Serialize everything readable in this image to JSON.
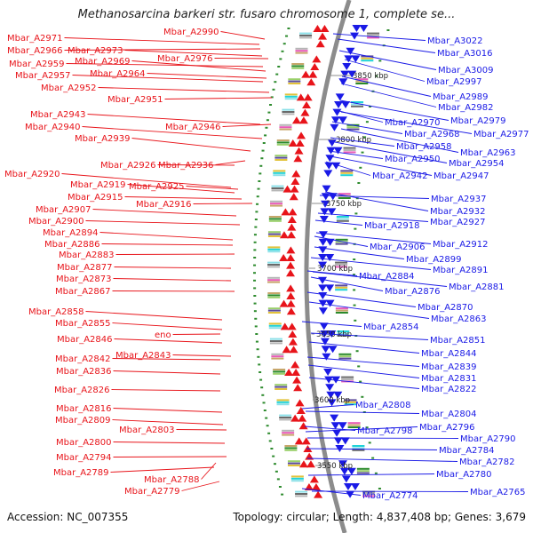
{
  "title": "Methanosarcina barkeri str. fusaro chromosome 1, complete se...",
  "accession_text": "Accession: NC_007355",
  "summary_text": "Topology: circular; Length: 4,837,408 bp; Genes: 3,679",
  "colors": {
    "forward": "#e8141a",
    "reverse": "#1a1ae6",
    "backbone": "#8c8c8c",
    "tick": "#2e8b2e"
  },
  "kbp_ticks": [
    "3850 kbp",
    "3800 kbp",
    "3750 kbp",
    "3700 kbp",
    "3650 kbp",
    "3600 kbp",
    "3550 kbp"
  ],
  "left_labels": [
    "Mbar_A2971",
    "Mbar_A2966",
    "Mbar_A2973",
    "Mbar_A2990",
    "Mbar_A2959",
    "Mbar_A2969",
    "Mbar_A2976",
    "Mbar_A2957",
    "Mbar_A2964",
    "Mbar_A2952",
    "Mbar_A2951",
    "Mbar_A2943",
    "Mbar_A2940",
    "Mbar_A2946",
    "Mbar_A2939",
    "Mbar_A2926",
    "Mbar_A2936",
    "Mbar_A2920",
    "Mbar_A2919",
    "Mbar_A2925",
    "Mbar_A2915",
    "Mbar_A2916",
    "Mbar_A2907",
    "Mbar_A2900",
    "Mbar_A2894",
    "Mbar_A2886",
    "Mbar_A2883",
    "Mbar_A2877",
    "Mbar_A2873",
    "Mbar_A2867",
    "Mbar_A2858",
    "Mbar_A2855",
    "eno",
    "Mbar_A2846",
    "Mbar_A2842",
    "Mbar_A2843",
    "Mbar_A2836",
    "Mbar_A2826",
    "Mbar_A2816",
    "Mbar_A2809",
    "Mbar_A2803",
    "Mbar_A2800",
    "Mbar_A2794",
    "Mbar_A2789",
    "Mbar_A2788",
    "Mbar_A2779"
  ],
  "right_labels": [
    "Mbar_A3022",
    "Mbar_A3016",
    "Mbar_A3009",
    "Mbar_A2997",
    "Mbar_A2989",
    "Mbar_A2982",
    "Mbar_A2970",
    "Mbar_A2979",
    "Mbar_A2968",
    "Mbar_A2977",
    "Mbar_A2958",
    "Mbar_A2963",
    "Mbar_A2950",
    "Mbar_A2954",
    "Mbar_A2942",
    "Mbar_A2947",
    "Mbar_A2937",
    "Mbar_A2932",
    "Mbar_A2918",
    "Mbar_A2927",
    "Mbar_A2906",
    "Mbar_A2912",
    "Mbar_A2899",
    "Mbar_A2891",
    "Mbar_A2884",
    "Mbar_A2876",
    "Mbar_A2881",
    "Mbar_A2870",
    "Mbar_A2863",
    "Mbar_A2854",
    "Mbar_A2851",
    "Mbar_A2844",
    "Mbar_A2839",
    "Mbar_A2831",
    "Mbar_A2822",
    "Mbar_A2808",
    "Mbar_A2804",
    "Mbar_A2798",
    "Mbar_A2796",
    "Mbar_A2790",
    "Mbar_A2784",
    "Mbar_A2782",
    "Mbar_A2780",
    "Mbar_A2774",
    "Mbar_A2765"
  ]
}
